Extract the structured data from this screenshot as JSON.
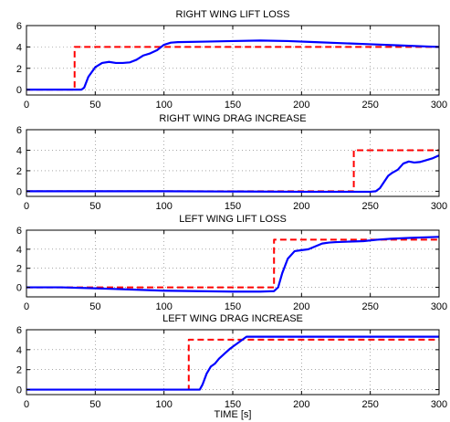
{
  "chart_data": [
    {
      "type": "line",
      "title": "RIGHT WING LIFT LOSS",
      "xlabel": "",
      "ylabel": "",
      "xlim": [
        0,
        300
      ],
      "ylim": [
        -0.5,
        6
      ],
      "xticks": [
        0,
        50,
        100,
        150,
        200,
        250,
        300
      ],
      "yticks": [
        0,
        2,
        4,
        6
      ],
      "grid": true,
      "series": [
        {
          "style": "dashed",
          "color": "#ff0000",
          "x": [
            0,
            35,
            35,
            300
          ],
          "y": [
            0,
            0,
            4,
            4
          ]
        },
        {
          "style": "solid",
          "color": "#0000ff",
          "x": [
            0,
            40,
            42,
            45,
            50,
            55,
            60,
            65,
            70,
            75,
            80,
            85,
            90,
            95,
            100,
            105,
            110,
            130,
            150,
            170,
            190,
            210,
            230,
            250,
            270,
            290,
            300
          ],
          "y": [
            0,
            0,
            0.2,
            1.2,
            2.1,
            2.5,
            2.6,
            2.5,
            2.5,
            2.55,
            2.8,
            3.2,
            3.4,
            3.7,
            4.2,
            4.4,
            4.45,
            4.5,
            4.55,
            4.6,
            4.55,
            4.45,
            4.35,
            4.25,
            4.15,
            4.05,
            4.0
          ]
        }
      ]
    },
    {
      "type": "line",
      "title": "RIGHT WING DRAG INCREASE",
      "xlabel": "",
      "ylabel": "",
      "xlim": [
        0,
        300
      ],
      "ylim": [
        -0.5,
        6
      ],
      "xticks": [
        0,
        50,
        100,
        150,
        200,
        250,
        300
      ],
      "yticks": [
        0,
        2,
        4,
        6
      ],
      "grid": true,
      "series": [
        {
          "style": "dashed",
          "color": "#ff0000",
          "x": [
            0,
            238,
            238,
            300
          ],
          "y": [
            0,
            0,
            4,
            4
          ]
        },
        {
          "style": "solid",
          "color": "#0000ff",
          "x": [
            0,
            100,
            200,
            250,
            254,
            257,
            260,
            263,
            266,
            270,
            274,
            278,
            282,
            286,
            290,
            295,
            300
          ],
          "y": [
            0,
            0,
            -0.05,
            -0.05,
            0,
            0.3,
            0.9,
            1.5,
            1.8,
            2.1,
            2.7,
            2.9,
            2.8,
            2.85,
            3.0,
            3.2,
            3.5
          ]
        }
      ]
    },
    {
      "type": "line",
      "title": "LEFT WING LIFT LOSS",
      "xlabel": "",
      "ylabel": "",
      "xlim": [
        0,
        300
      ],
      "ylim": [
        -1,
        6
      ],
      "xticks": [
        0,
        50,
        100,
        150,
        200,
        250,
        300
      ],
      "yticks": [
        0,
        2,
        4,
        6
      ],
      "grid": true,
      "series": [
        {
          "style": "dashed",
          "color": "#ff0000",
          "x": [
            0,
            180,
            180,
            300
          ],
          "y": [
            0,
            0,
            5,
            5
          ]
        },
        {
          "style": "solid",
          "color": "#0000ff",
          "x": [
            0,
            25,
            50,
            100,
            150,
            170,
            180,
            183,
            186,
            190,
            195,
            200,
            205,
            210,
            215,
            220,
            225,
            235,
            245,
            255,
            265,
            280,
            300
          ],
          "y": [
            0,
            0,
            -0.1,
            -0.35,
            -0.45,
            -0.45,
            -0.4,
            0,
            1.5,
            3.0,
            3.8,
            3.9,
            4.0,
            4.3,
            4.6,
            4.7,
            4.75,
            4.8,
            4.85,
            5.0,
            5.1,
            5.2,
            5.3
          ]
        }
      ]
    },
    {
      "type": "line",
      "title": "LEFT WING DRAG INCREASE",
      "xlabel": "TIME [s]",
      "ylabel": "",
      "xlim": [
        0,
        300
      ],
      "ylim": [
        -0.5,
        6
      ],
      "xticks": [
        0,
        50,
        100,
        150,
        200,
        250,
        300
      ],
      "yticks": [
        0,
        2,
        4,
        6
      ],
      "grid": true,
      "series": [
        {
          "style": "dashed",
          "color": "#ff0000",
          "x": [
            0,
            118,
            118,
            300
          ],
          "y": [
            0,
            0,
            5,
            5
          ]
        },
        {
          "style": "solid",
          "color": "#0000ff",
          "x": [
            0,
            126,
            128,
            131,
            134,
            137,
            140,
            144,
            148,
            152,
            156,
            160,
            170,
            200,
            250,
            300
          ],
          "y": [
            0,
            0,
            0.5,
            1.6,
            2.3,
            2.6,
            3.1,
            3.6,
            4.1,
            4.5,
            4.9,
            5.3,
            5.3,
            5.3,
            5.3,
            5.3
          ]
        }
      ]
    }
  ]
}
